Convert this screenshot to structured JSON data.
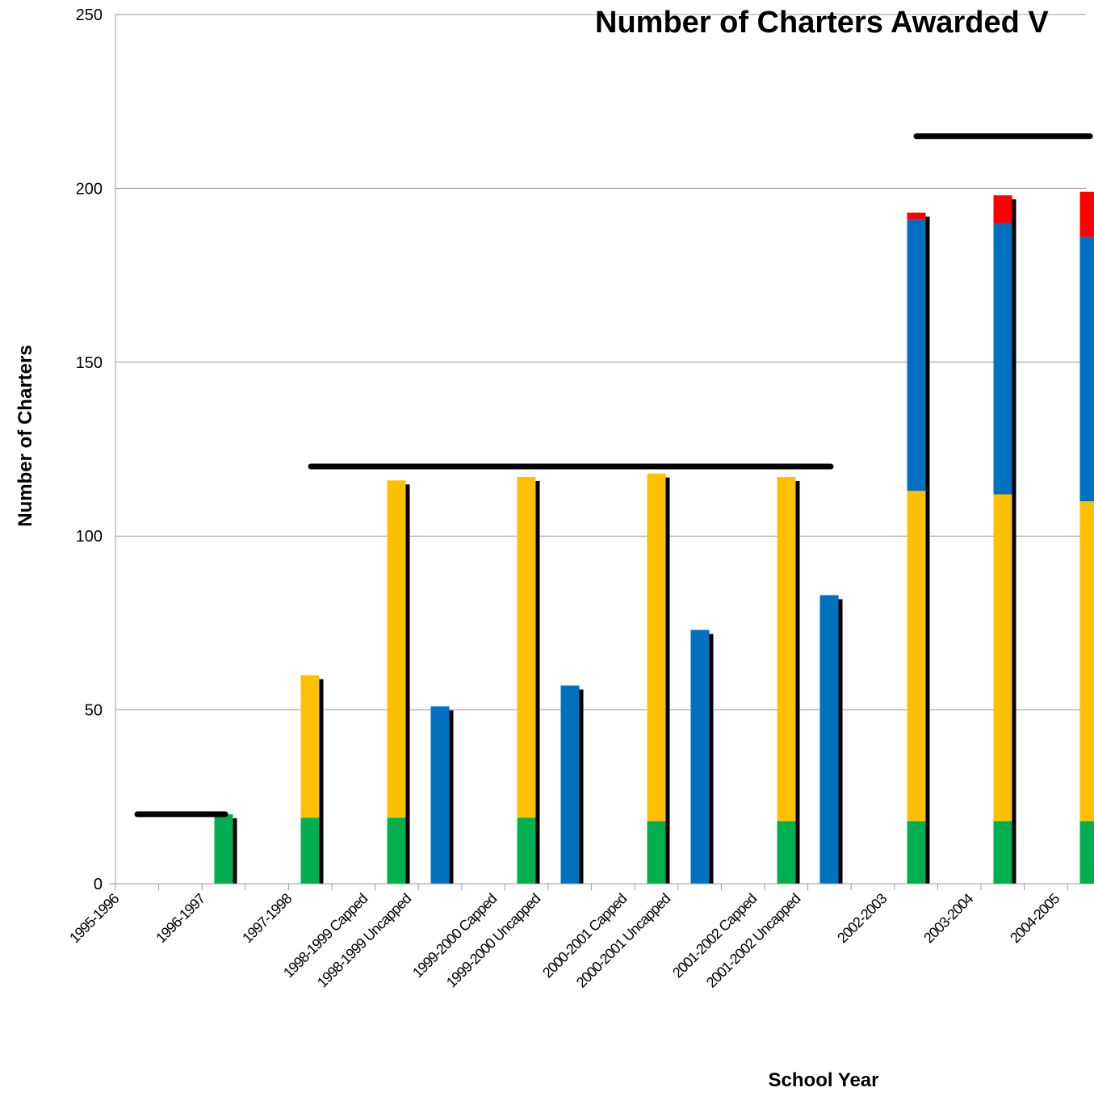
{
  "chart_data": {
    "type": "bar",
    "stacked": true,
    "title": "Number of Charters Awarded V",
    "xlabel": "School Year",
    "ylabel": "Number of Charters",
    "ylim": [
      0,
      250
    ],
    "yticks": [
      0,
      50,
      100,
      150,
      200,
      250
    ],
    "grid": true,
    "categories": [
      "1995-1996",
      "1996-1997",
      "1997-1998",
      "1998-1999 Capped",
      "1998-1999 Uncapped",
      "1999-2000 Capped",
      "1999-2000 Uncapped",
      "2000-2001 Capped",
      "2000-2001 Uncapped",
      "2001-2002 Capped",
      "2001-2002 Uncapped",
      "2002-2003",
      "2003-2004",
      "2004-2005"
    ],
    "series": [
      {
        "color": "#00b050",
        "values": [
          0,
          20,
          19,
          19,
          0,
          19,
          0,
          18,
          0,
          18,
          0,
          18,
          18,
          18
        ]
      },
      {
        "color": "#ffc000",
        "values": [
          0,
          0,
          41,
          97,
          0,
          98,
          0,
          100,
          0,
          99,
          0,
          95,
          94,
          92
        ]
      },
      {
        "color": "#0070c0",
        "values": [
          0,
          0,
          0,
          0,
          51,
          0,
          57,
          0,
          73,
          0,
          83,
          78,
          78,
          76
        ]
      },
      {
        "color": "#ff0000",
        "values": [
          0,
          0,
          0,
          0,
          0,
          0,
          0,
          0,
          0,
          0,
          0,
          2,
          8,
          13
        ]
      }
    ],
    "cap_lines": [
      {
        "from_category": "1995-1996",
        "to_category": "1996-1997",
        "value": 20
      },
      {
        "from_category": "1998-1999 Capped",
        "to_category": "2001-2002 Uncapped",
        "value": 120
      },
      {
        "from_category": "2002-2003",
        "to_category": "2004-2005",
        "value": 215
      }
    ]
  }
}
